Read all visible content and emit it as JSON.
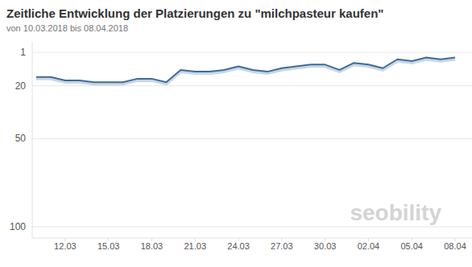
{
  "chart_data": {
    "type": "line",
    "title": "Zeitliche Entwicklung der Platzierungen zu \"milchpasteur kaufen\"",
    "subtitle": "von 10.03.2018 bis 08.04.2018",
    "categories": [
      null,
      null,
      "12.03",
      null,
      null,
      "15.03",
      null,
      null,
      "18.03",
      null,
      null,
      "21.03",
      null,
      null,
      "24.03",
      null,
      null,
      "27.03",
      null,
      null,
      "30.03",
      null,
      null,
      "02.04",
      null,
      null,
      "05.04",
      null,
      null,
      "08.04"
    ],
    "values": [
      15,
      15,
      17,
      17,
      18,
      18,
      18,
      16,
      16,
      18,
      11,
      12,
      12,
      11,
      9,
      11,
      12,
      10,
      9,
      8,
      8,
      11,
      7,
      8,
      10,
      5,
      6,
      4,
      5,
      4
    ],
    "color": "#3d6c9b",
    "ylim": [
      100,
      1
    ],
    "yticks": [
      1,
      20,
      50,
      100
    ],
    "grid": true,
    "annotations": [
      "seobility"
    ]
  }
}
